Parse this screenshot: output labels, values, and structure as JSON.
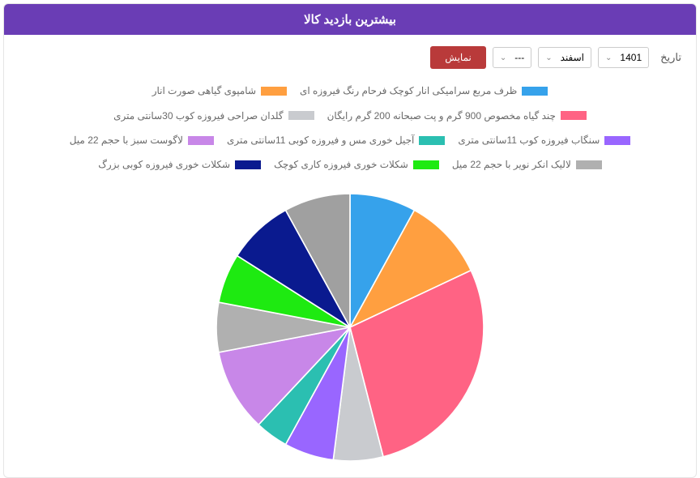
{
  "title": "بیشترین بازدید کالا",
  "controls": {
    "date_label": "تاریخ",
    "year": "1401",
    "month": "اسفند",
    "day": "---",
    "button": "نمایش"
  },
  "chart": {
    "type": "pie",
    "background_color": "#ffffff",
    "radius": 100,
    "start_angle_deg": -90,
    "label_fontsize": 12,
    "label_color": "#6a6a6a",
    "swatch_width": 32,
    "swatch_height": 11,
    "series": [
      {
        "label": "ظرف مربع سرامیکی انار کوچک فرحام رنگ فیروزه ای",
        "color": "#36a2eb",
        "value": 8
      },
      {
        "label": "شامپوی گیاهی صورت انار",
        "color": "#ff9f40",
        "value": 10
      },
      {
        "label": "چند گیاه مخصوص  900 گرم  و پت صبحانه 200 گرم رایگان",
        "color": "#ff6384",
        "value": 28
      },
      {
        "label": "گلدان صراحی فیروزه کوب 30سانتی متری",
        "color": "#c9cbcf",
        "value": 6
      },
      {
        "label": "سنگاب فیروزه کوب 11سانتی متری",
        "color": "#9966ff",
        "value": 6
      },
      {
        "label": "آجیل خوری مس و فیروزه کوبی 11سانتی متری",
        "color": "#2bbfb1",
        "value": 4
      },
      {
        "label": "لاگوست سبز با حجم 22 میل",
        "color": "#c887e8",
        "value": 10
      },
      {
        "label": "لالیک انکر نویر با حجم 22 میل",
        "color": "#b0b0b0",
        "value": 6
      },
      {
        "label": "شکلات خوری فیروزه کاری کوچک",
        "color": "#1eea11",
        "value": 6
      },
      {
        "label": "شکلات خوری فیروزه کوبی بزرگ",
        "color": "#0a1a8f",
        "value": 8
      },
      {
        "label": "",
        "color": "#a0a0a0",
        "value": 8
      }
    ]
  }
}
